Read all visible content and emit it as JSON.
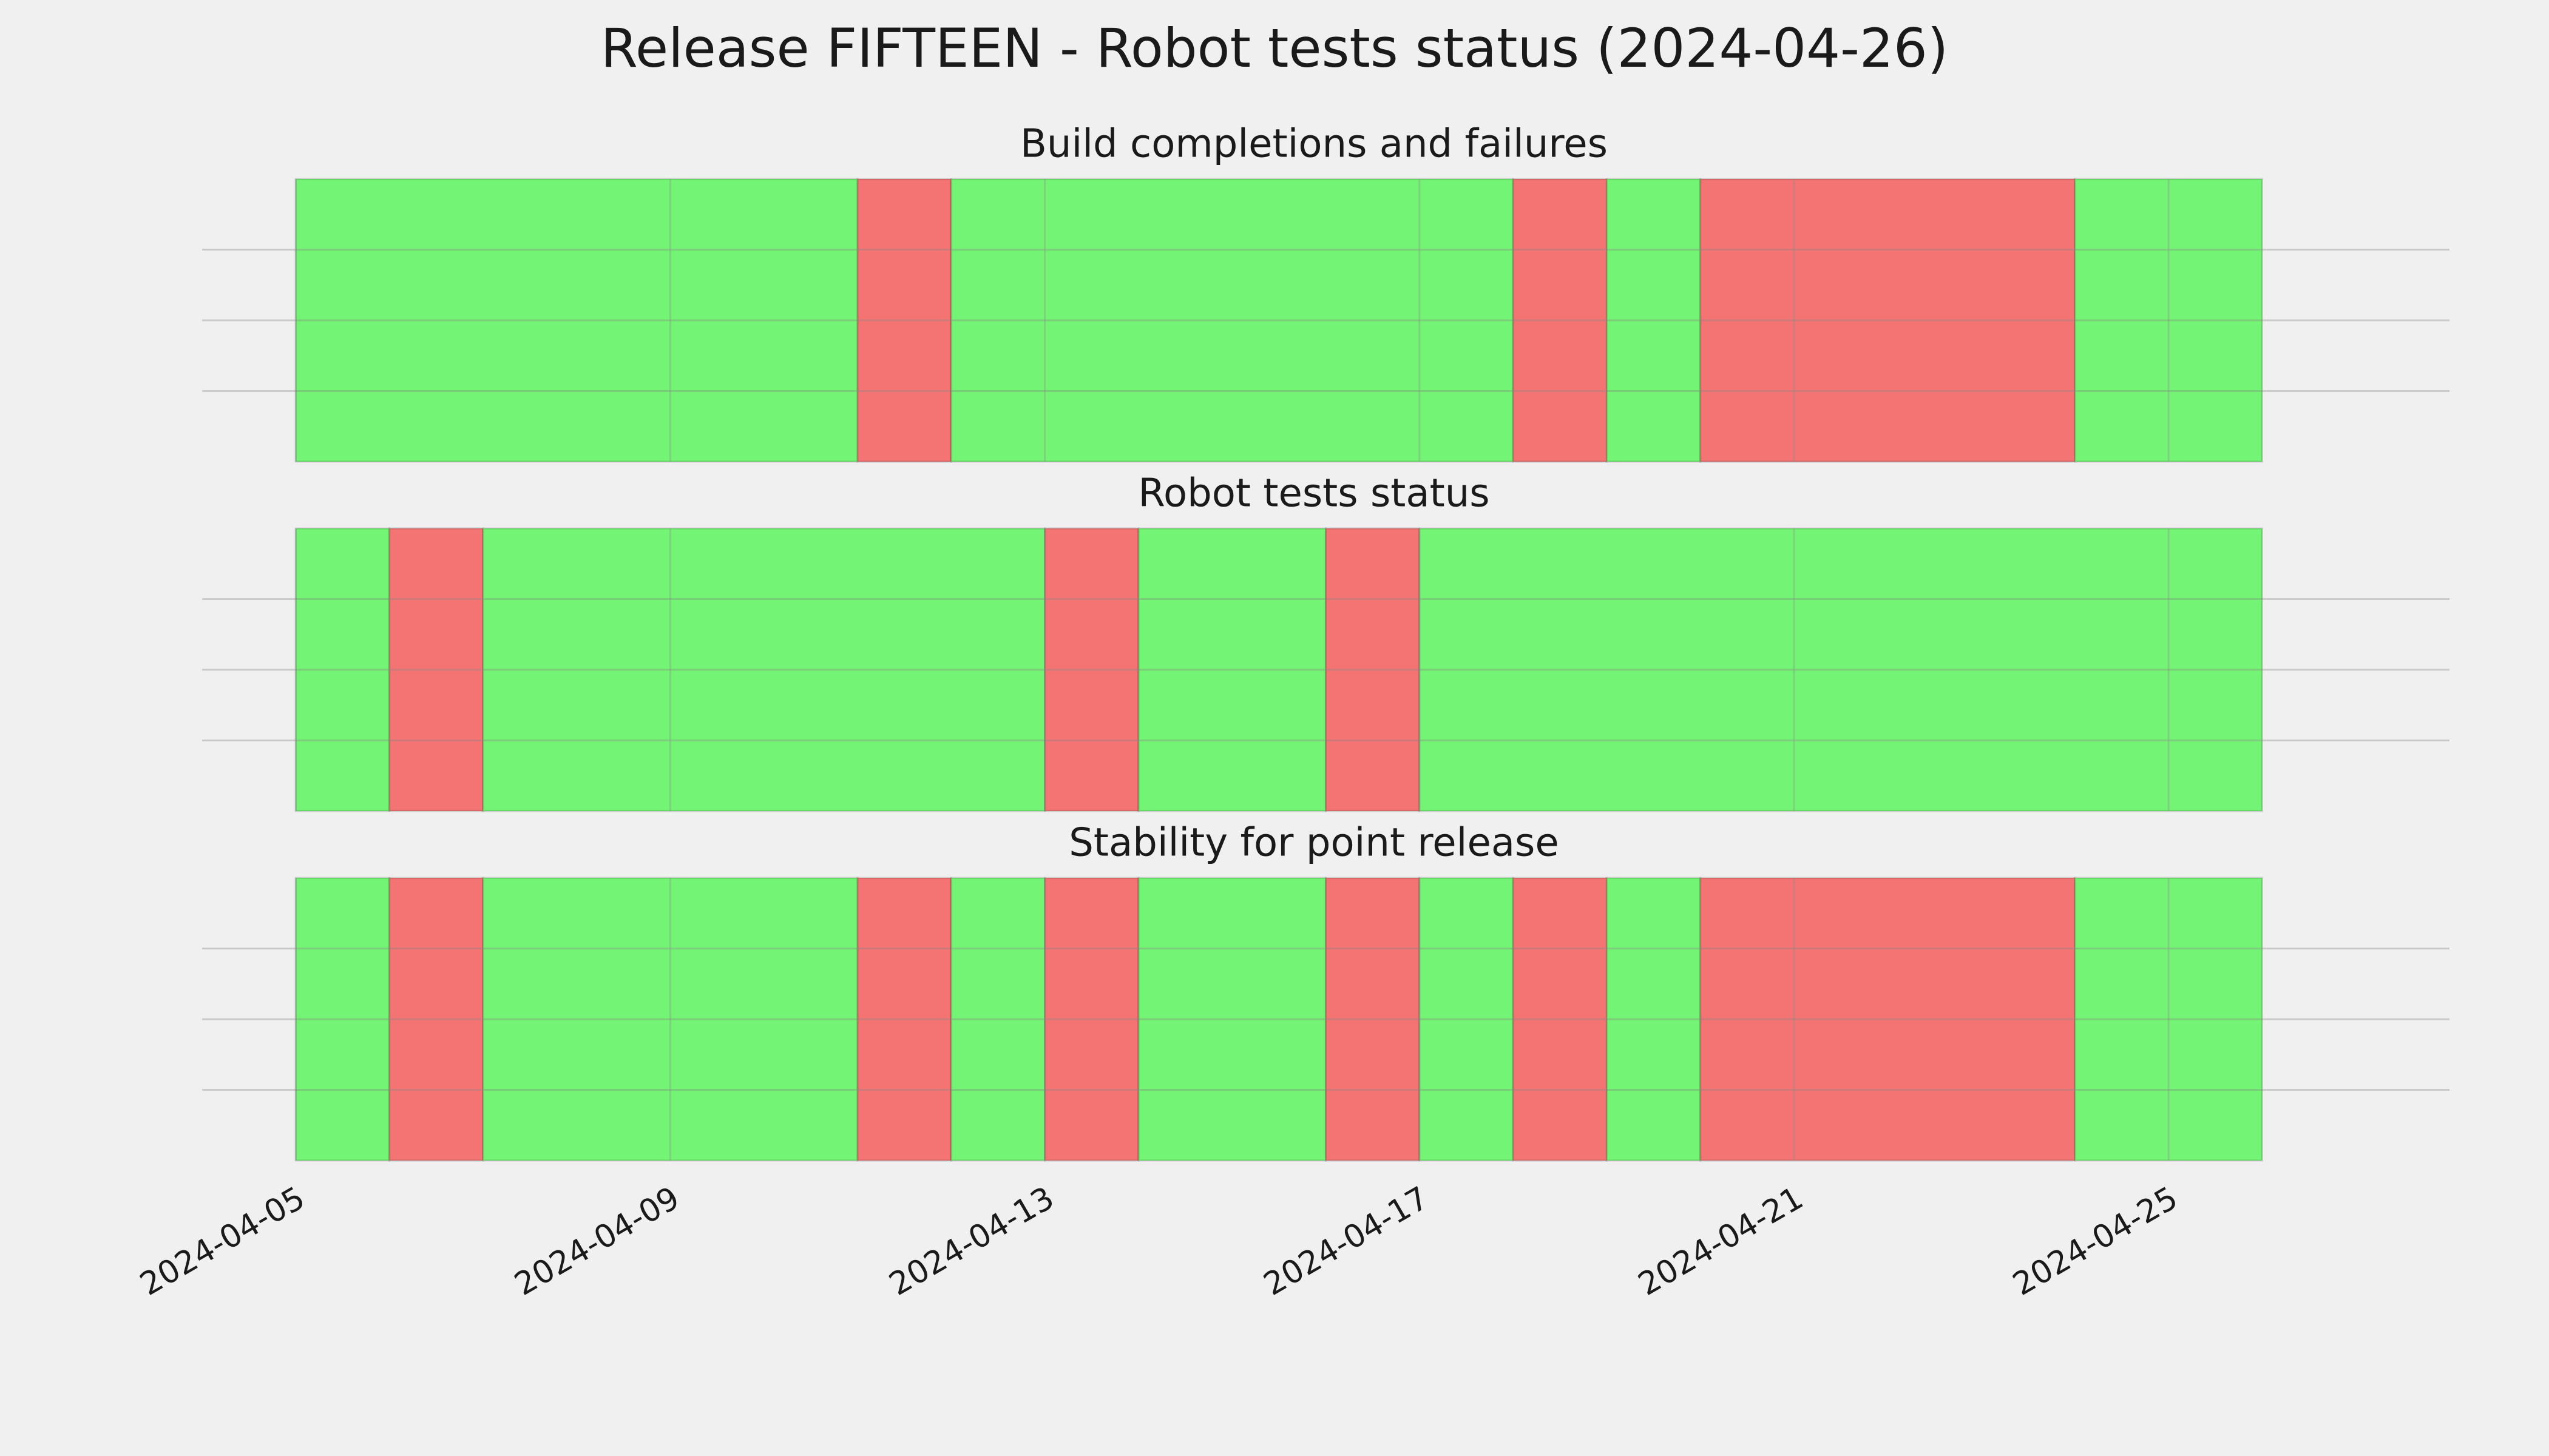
{
  "title": "Release FIFTEEN - Robot tests status (2024-04-26)",
  "chart_data": [
    {
      "type": "timeline",
      "title": "Build completions and failures",
      "start": [
        "2024-04-05",
        "2024-04-11",
        "2024-04-12",
        "2024-04-18",
        "2024-04-19",
        "2024-04-20",
        "2024-04-24"
      ],
      "end": [
        "2024-04-11",
        "2024-04-12",
        "2024-04-18",
        "2024-04-19",
        "2024-04-20",
        "2024-04-24",
        "2024-04-26"
      ],
      "colors": [
        "#74f474",
        "#f47474",
        "#74f474",
        "#f47474",
        "#74f474",
        "#f47474",
        "#74f474"
      ],
      "xlim": [
        "2024-04-04",
        "2024-04-28"
      ],
      "xticks": [
        "2024-04-05",
        "2024-04-09",
        "2024-04-13",
        "2024-04-17",
        "2024-04-21",
        "2024-04-25"
      ],
      "ylim": [
        0,
        1
      ],
      "yticks": [
        0.25,
        0.5,
        0.75
      ],
      "grid": true
    },
    {
      "type": "timeline",
      "title": "Robot tests status",
      "start": [
        "2024-04-05",
        "2024-04-06",
        "2024-04-07",
        "2024-04-13",
        "2024-04-14",
        "2024-04-16",
        "2024-04-17"
      ],
      "end": [
        "2024-04-06",
        "2024-04-07",
        "2024-04-13",
        "2024-04-14",
        "2024-04-16",
        "2024-04-17",
        "2024-04-26"
      ],
      "colors": [
        "#74f474",
        "#f47474",
        "#74f474",
        "#f47474",
        "#74f474",
        "#f47474",
        "#74f474"
      ],
      "xlim": [
        "2024-04-04",
        "2024-04-28"
      ],
      "xticks": [
        "2024-04-05",
        "2024-04-09",
        "2024-04-13",
        "2024-04-17",
        "2024-04-21",
        "2024-04-25"
      ],
      "ylim": [
        0,
        1
      ],
      "yticks": [
        0.25,
        0.5,
        0.75
      ],
      "grid": true
    },
    {
      "type": "timeline",
      "title": "Stability for point release",
      "start": [
        "2024-04-05",
        "2024-04-06",
        "2024-04-07",
        "2024-04-11",
        "2024-04-12",
        "2024-04-13",
        "2024-04-14",
        "2024-04-16",
        "2024-04-17",
        "2024-04-18",
        "2024-04-19",
        "2024-04-20",
        "2024-04-24"
      ],
      "end": [
        "2024-04-06",
        "2024-04-07",
        "2024-04-11",
        "2024-04-12",
        "2024-04-13",
        "2024-04-14",
        "2024-04-16",
        "2024-04-17",
        "2024-04-18",
        "2024-04-19",
        "2024-04-20",
        "2024-04-24",
        "2024-04-26"
      ],
      "colors": [
        "#74f474",
        "#f47474",
        "#74f474",
        "#f47474",
        "#74f474",
        "#f47474",
        "#74f474",
        "#f47474",
        "#74f474",
        "#f47474",
        "#74f474",
        "#f47474",
        "#74f474"
      ],
      "xlim": [
        "2024-04-04",
        "2024-04-28"
      ],
      "xticks": [
        "2024-04-05",
        "2024-04-09",
        "2024-04-13",
        "2024-04-17",
        "2024-04-21",
        "2024-04-25"
      ],
      "ylim": [
        0,
        1
      ],
      "yticks": [
        0.25,
        0.5,
        0.75
      ],
      "grid": true,
      "show_xtick_labels": true
    }
  ]
}
